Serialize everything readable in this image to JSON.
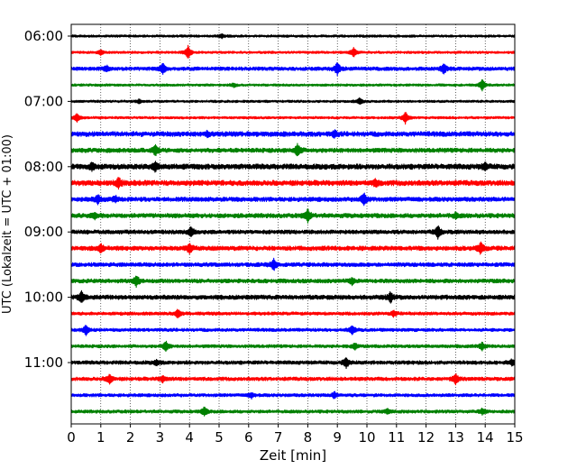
{
  "chart_data": {
    "type": "line",
    "subtype": "helicorder",
    "xlabel": "Zeit  [min]",
    "ylabel": "UTC (Lokalzeit = UTC + 01:00)",
    "xlim": [
      0,
      15
    ],
    "x_ticks": [
      "0",
      "1",
      "2",
      "3",
      "4",
      "5",
      "6",
      "7",
      "8",
      "9",
      "10",
      "11",
      "12",
      "13",
      "14",
      "15"
    ],
    "y_tick_labels": [
      "06:00",
      "07:00",
      "08:00",
      "09:00",
      "10:00",
      "11:00"
    ],
    "trace_interval_minutes": 15,
    "grid": "vertical dotted at each minute",
    "color_cycle": [
      "#000000",
      "#ff0000",
      "#0000ff",
      "#008000"
    ],
    "traces": [
      {
        "start": "06:00",
        "color": "#000000",
        "noise": 0.3,
        "events": [
          {
            "x": 5.1,
            "amp": 0.6
          }
        ]
      },
      {
        "start": "06:15",
        "color": "#ff0000",
        "noise": 0.3,
        "events": [
          {
            "x": 1.0,
            "amp": 0.8
          },
          {
            "x": 3.95,
            "amp": 2.2
          },
          {
            "x": 9.55,
            "amp": 1.6
          }
        ]
      },
      {
        "start": "06:30",
        "color": "#0000ff",
        "noise": 0.45,
        "events": [
          {
            "x": 1.2,
            "amp": 0.9
          },
          {
            "x": 3.1,
            "amp": 1.8
          },
          {
            "x": 9.0,
            "amp": 2.0
          },
          {
            "x": 12.6,
            "amp": 1.6
          }
        ]
      },
      {
        "start": "06:45",
        "color": "#008000",
        "noise": 0.3,
        "events": [
          {
            "x": 5.5,
            "amp": 0.6
          },
          {
            "x": 13.9,
            "amp": 1.9
          }
        ]
      },
      {
        "start": "07:00",
        "color": "#000000",
        "noise": 0.3,
        "events": [
          {
            "x": 2.3,
            "amp": 0.6
          },
          {
            "x": 9.75,
            "amp": 1.0
          }
        ]
      },
      {
        "start": "07:15",
        "color": "#ff0000",
        "noise": 0.3,
        "events": [
          {
            "x": 0.2,
            "amp": 1.4
          },
          {
            "x": 11.3,
            "amp": 2.0
          }
        ]
      },
      {
        "start": "07:30",
        "color": "#0000ff",
        "noise": 0.6,
        "events": [
          {
            "x": 4.6,
            "amp": 0.8
          },
          {
            "x": 8.9,
            "amp": 1.0
          }
        ]
      },
      {
        "start": "07:45",
        "color": "#008000",
        "noise": 0.55,
        "events": [
          {
            "x": 2.85,
            "amp": 1.6
          },
          {
            "x": 7.65,
            "amp": 2.0
          }
        ]
      },
      {
        "start": "08:00",
        "color": "#000000",
        "noise": 0.65,
        "events": [
          {
            "x": 0.7,
            "amp": 1.0
          },
          {
            "x": 2.85,
            "amp": 1.4
          },
          {
            "x": 14.0,
            "amp": 1.0
          }
        ]
      },
      {
        "start": "08:15",
        "color": "#ff0000",
        "noise": 0.65,
        "events": [
          {
            "x": 1.6,
            "amp": 1.6
          },
          {
            "x": 10.3,
            "amp": 1.0
          }
        ]
      },
      {
        "start": "08:30",
        "color": "#0000ff",
        "noise": 0.55,
        "events": [
          {
            "x": 0.9,
            "amp": 1.4
          },
          {
            "x": 1.5,
            "amp": 1.0
          },
          {
            "x": 9.9,
            "amp": 2.0
          }
        ]
      },
      {
        "start": "08:45",
        "color": "#008000",
        "noise": 0.55,
        "events": [
          {
            "x": 0.8,
            "amp": 1.0
          },
          {
            "x": 8.0,
            "amp": 2.0
          },
          {
            "x": 13.0,
            "amp": 0.8
          }
        ]
      },
      {
        "start": "09:00",
        "color": "#000000",
        "noise": 0.5,
        "events": [
          {
            "x": 4.05,
            "amp": 1.6
          },
          {
            "x": 12.4,
            "amp": 2.0
          }
        ]
      },
      {
        "start": "09:15",
        "color": "#ff0000",
        "noise": 0.55,
        "events": [
          {
            "x": 1.0,
            "amp": 1.2
          },
          {
            "x": 4.0,
            "amp": 1.6
          },
          {
            "x": 13.85,
            "amp": 1.8
          }
        ]
      },
      {
        "start": "09:30",
        "color": "#0000ff",
        "noise": 0.5,
        "events": [
          {
            "x": 6.85,
            "amp": 1.8
          }
        ]
      },
      {
        "start": "09:45",
        "color": "#008000",
        "noise": 0.5,
        "events": [
          {
            "x": 2.2,
            "amp": 1.8
          },
          {
            "x": 9.5,
            "amp": 1.0
          }
        ]
      },
      {
        "start": "10:00",
        "color": "#000000",
        "noise": 0.55,
        "events": [
          {
            "x": 0.35,
            "amp": 1.8
          },
          {
            "x": 10.8,
            "amp": 1.6
          }
        ]
      },
      {
        "start": "10:15",
        "color": "#ff0000",
        "noise": 0.4,
        "events": [
          {
            "x": 3.6,
            "amp": 1.4
          },
          {
            "x": 10.9,
            "amp": 0.9
          }
        ]
      },
      {
        "start": "10:30",
        "color": "#0000ff",
        "noise": 0.4,
        "events": [
          {
            "x": 0.5,
            "amp": 1.6
          },
          {
            "x": 9.5,
            "amp": 1.4
          }
        ]
      },
      {
        "start": "10:45",
        "color": "#008000",
        "noise": 0.4,
        "events": [
          {
            "x": 3.2,
            "amp": 1.6
          },
          {
            "x": 9.6,
            "amp": 1.0
          },
          {
            "x": 13.9,
            "amp": 1.2
          }
        ]
      },
      {
        "start": "11:00",
        "color": "#000000",
        "noise": 0.45,
        "events": [
          {
            "x": 2.9,
            "amp": 0.8
          },
          {
            "x": 9.3,
            "amp": 1.6
          },
          {
            "x": 14.9,
            "amp": 0.9
          }
        ]
      },
      {
        "start": "11:15",
        "color": "#ff0000",
        "noise": 0.45,
        "events": [
          {
            "x": 1.3,
            "amp": 1.6
          },
          {
            "x": 3.1,
            "amp": 1.0
          },
          {
            "x": 13.0,
            "amp": 1.6
          }
        ]
      },
      {
        "start": "11:30",
        "color": "#0000ff",
        "noise": 0.4,
        "events": [
          {
            "x": 6.1,
            "amp": 0.8
          },
          {
            "x": 8.9,
            "amp": 1.0
          }
        ]
      },
      {
        "start": "11:45",
        "color": "#008000",
        "noise": 0.4,
        "events": [
          {
            "x": 4.5,
            "amp": 1.4
          },
          {
            "x": 10.7,
            "amp": 0.8
          },
          {
            "x": 13.9,
            "amp": 0.9
          }
        ]
      }
    ]
  }
}
